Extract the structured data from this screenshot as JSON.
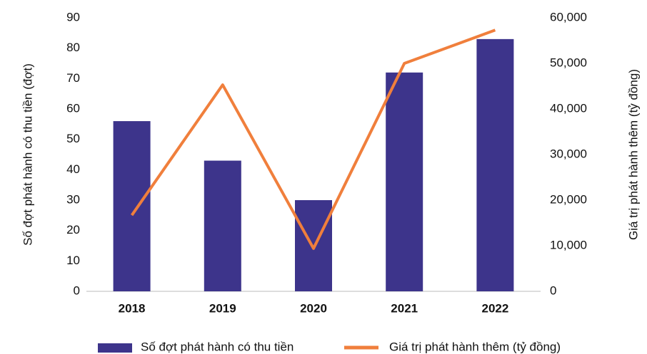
{
  "chart_data": {
    "type": "combo",
    "ylabel": "Số đợt phát hành có thu tiền (đợt)",
    "y2label": "Giá trị phát hành thêm (tỷ đồng)",
    "categories": [
      "2018",
      "2019",
      "2020",
      "2021",
      "2022"
    ],
    "series": [
      {
        "name": "Số đợt phát hành có thu tiền",
        "type": "bar",
        "color": "#3d348b",
        "values": [
          56,
          43,
          30,
          72,
          83
        ]
      },
      {
        "name": "Giá trị phát hành thêm (tỷ đồng)",
        "type": "line",
        "axis": "y2",
        "color": "#f07f3c",
        "values": [
          16700,
          45300,
          9400,
          50000,
          57300
        ]
      }
    ],
    "ylim": [
      0,
      90
    ],
    "yticks": [
      0,
      10,
      20,
      30,
      40,
      50,
      60,
      70,
      80,
      90
    ],
    "y2lim": [
      0,
      60000
    ],
    "y2ticks": [
      0,
      {
        "value": 10000,
        "label": "10,000"
      },
      {
        "value": 20000,
        "label": "20,000"
      },
      {
        "value": 30000,
        "label": "30,000"
      },
      {
        "value": 40000,
        "label": "40,000"
      },
      {
        "value": 50000,
        "label": "50,000"
      },
      {
        "value": 60000,
        "label": "60,000"
      }
    ],
    "grid": false,
    "legend": "bottom"
  }
}
